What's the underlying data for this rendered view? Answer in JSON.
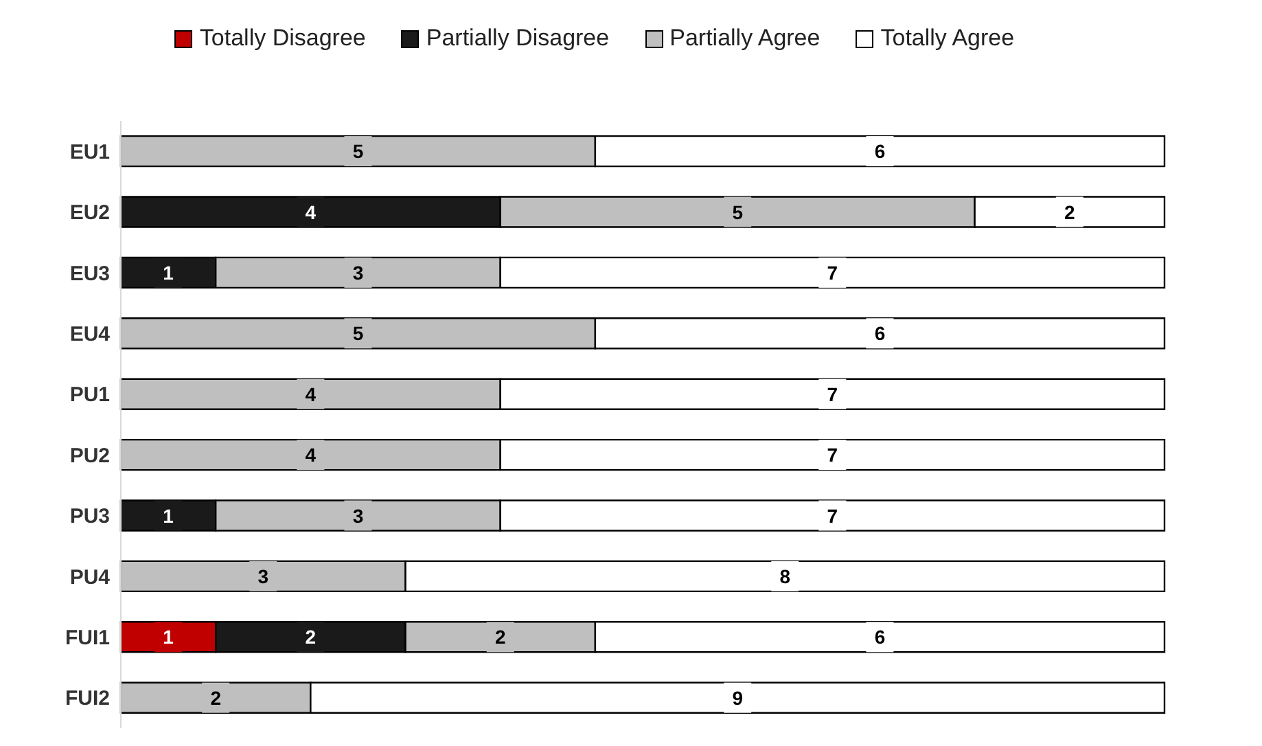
{
  "chart_data": {
    "type": "bar",
    "orientation": "horizontal",
    "stacked": true,
    "data_labels": true,
    "legend": "top",
    "grid": false,
    "tick_labels": "y",
    "categories": [
      "EU1",
      "EU2",
      "EU3",
      "EU4",
      "PU1",
      "PU2",
      "PU3",
      "PU4",
      "FUI1",
      "FUI2"
    ],
    "series": [
      {
        "name": "Totally Disagree",
        "color": "#c00000",
        "values": [
          null,
          null,
          null,
          null,
          null,
          null,
          null,
          null,
          1,
          null
        ]
      },
      {
        "name": "Partially Disagree",
        "color": "#1a1a1a",
        "values": [
          null,
          4,
          1,
          null,
          null,
          null,
          1,
          null,
          2,
          null
        ]
      },
      {
        "name": "Partially Agree",
        "color": "#bfbfbf",
        "values": [
          5,
          5,
          3,
          5,
          4,
          4,
          3,
          3,
          2,
          2
        ]
      },
      {
        "name": "Totally Agree",
        "color": "#ffffff",
        "values": [
          6,
          2,
          7,
          6,
          7,
          7,
          7,
          8,
          6,
          9
        ]
      }
    ]
  }
}
